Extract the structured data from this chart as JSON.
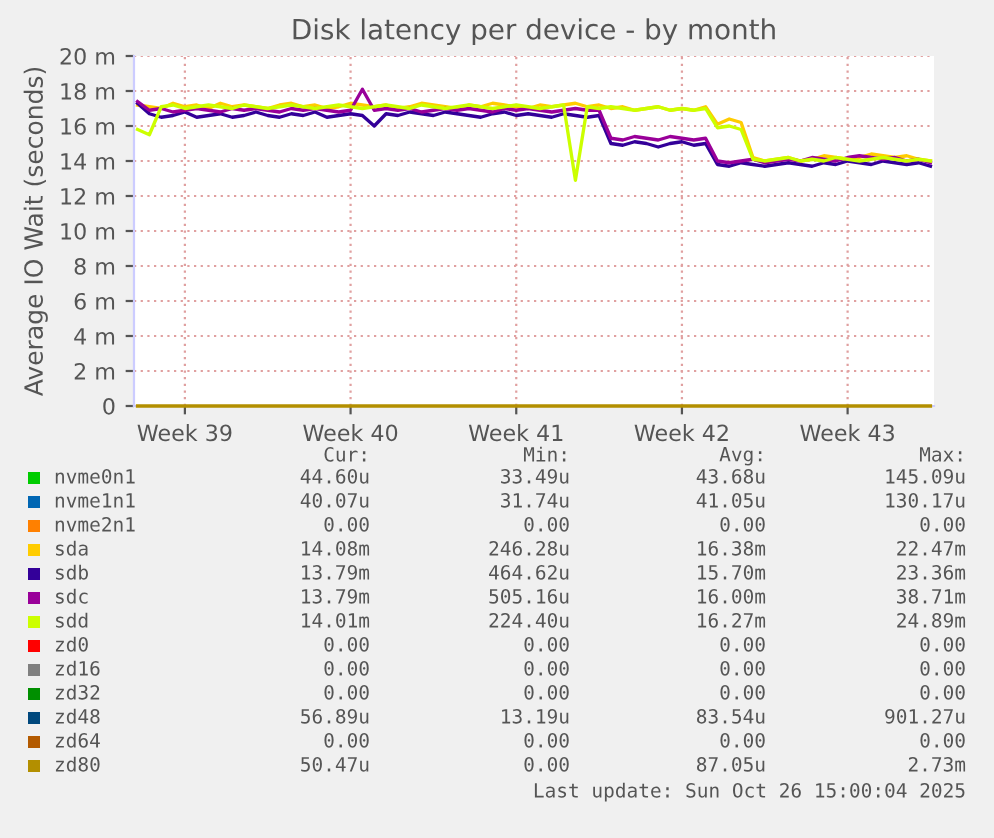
{
  "chart_data": {
    "type": "line",
    "title": "Disk latency per device - by month",
    "ylabel": "Average IO Wait (seconds)",
    "categories": [
      null,
      null,
      null,
      null,
      "Week 39",
      null,
      null,
      null,
      null,
      null,
      null,
      null,
      null,
      null,
      null,
      null,
      null,
      null,
      "Week 40",
      null,
      null,
      null,
      null,
      null,
      null,
      null,
      null,
      null,
      null,
      null,
      null,
      null,
      "Week 41",
      null,
      null,
      null,
      null,
      null,
      null,
      null,
      null,
      null,
      null,
      null,
      null,
      null,
      "Week 42",
      null,
      null,
      null,
      null,
      null,
      null,
      null,
      null,
      null,
      null,
      null,
      null,
      null,
      "Week 43",
      null,
      null,
      null,
      null,
      null,
      null,
      null
    ],
    "ylim": [
      0,
      20
    ],
    "yticks": [
      0,
      {
        "value": 2,
        "label": "2 m"
      },
      {
        "value": 4,
        "label": "4 m"
      },
      {
        "value": 6,
        "label": "6 m"
      },
      {
        "value": 8,
        "label": "8 m"
      },
      {
        "value": 10,
        "label": "10 m"
      },
      {
        "value": 12,
        "label": "12 m"
      },
      {
        "value": 14,
        "label": "14 m"
      },
      {
        "value": 16,
        "label": "16 m"
      },
      {
        "value": 18,
        "label": "18 m"
      },
      {
        "value": 20,
        "label": "20 m"
      }
    ],
    "grid": true,
    "legend": "bottom",
    "series": [
      {
        "name": "nvme0n1",
        "color": "#00cc00",
        "values": [
          null,
          null,
          null,
          null,
          null,
          null,
          null,
          null,
          null,
          null,
          null,
          null,
          null,
          null,
          null,
          null,
          null,
          null,
          null,
          null,
          null,
          null,
          null,
          null,
          null,
          null,
          null,
          null,
          null,
          null,
          null,
          null,
          null,
          null,
          null,
          null,
          null,
          null,
          null,
          null,
          null,
          null,
          null,
          null,
          null,
          null,
          null,
          null,
          null,
          null,
          null,
          null,
          null,
          null,
          null,
          null,
          null,
          null,
          null,
          null,
          null,
          null,
          null,
          null,
          null,
          null,
          null,
          null
        ]
      },
      {
        "name": "nvme1n1",
        "color": "#0066b3",
        "values": [
          null,
          null,
          null,
          null,
          null,
          null,
          null,
          null,
          null,
          null,
          null,
          null,
          null,
          null,
          null,
          null,
          null,
          null,
          null,
          null,
          null,
          null,
          null,
          null,
          null,
          null,
          null,
          null,
          null,
          null,
          null,
          null,
          null,
          null,
          null,
          null,
          null,
          null,
          null,
          null,
          null,
          null,
          null,
          null,
          null,
          null,
          null,
          null,
          null,
          null,
          null,
          null,
          null,
          null,
          null,
          null,
          null,
          null,
          null,
          null,
          null,
          null,
          null,
          null,
          null,
          null,
          null,
          null
        ]
      },
      {
        "name": "nvme2n1",
        "color": "#ff8000",
        "values": [
          null,
          null,
          null,
          null,
          null,
          null,
          null,
          null,
          null,
          null,
          null,
          null,
          null,
          null,
          null,
          null,
          null,
          null,
          null,
          null,
          null,
          null,
          null,
          null,
          null,
          null,
          null,
          null,
          null,
          null,
          null,
          null,
          null,
          null,
          null,
          null,
          null,
          null,
          null,
          null,
          null,
          null,
          null,
          null,
          null,
          null,
          null,
          null,
          null,
          null,
          null,
          null,
          null,
          null,
          null,
          null,
          null,
          null,
          null,
          null,
          null,
          null,
          null,
          null,
          null,
          null,
          null,
          null
        ]
      },
      {
        "name": "sda",
        "color": "#ffcc00",
        "values": [
          17.2,
          17.1,
          17.0,
          17.3,
          17.1,
          17.2,
          17.0,
          17.3,
          17.1,
          17.2,
          17.1,
          17.0,
          17.2,
          17.3,
          17.1,
          17.2,
          17.0,
          17.1,
          17.3,
          17.2,
          17.1,
          17.2,
          17.0,
          17.1,
          17.3,
          17.2,
          17.1,
          17.0,
          17.2,
          17.1,
          17.3,
          17.2,
          17.1,
          17.0,
          17.2,
          17.1,
          17.2,
          17.3,
          17.1,
          17.2,
          17.0,
          17.1,
          16.9,
          17.0,
          17.1,
          16.9,
          17.0,
          16.9,
          17.1,
          16.1,
          16.4,
          16.2,
          14.2,
          14.0,
          14.1,
          14.2,
          14.0,
          14.1,
          14.3,
          14.2,
          14.1,
          14.2,
          14.4,
          14.3,
          14.2,
          14.3,
          14.1,
          14.0
        ]
      },
      {
        "name": "sdb",
        "color": "#330099",
        "values": [
          17.3,
          16.7,
          16.5,
          16.6,
          16.8,
          16.5,
          16.6,
          16.7,
          16.5,
          16.6,
          16.8,
          16.6,
          16.5,
          16.7,
          16.6,
          16.8,
          16.5,
          16.6,
          16.7,
          16.6,
          16.0,
          16.7,
          16.6,
          16.8,
          16.7,
          16.6,
          16.8,
          16.7,
          16.6,
          16.5,
          16.7,
          16.8,
          16.6,
          16.7,
          16.6,
          16.5,
          16.7,
          16.6,
          16.5,
          16.6,
          15.0,
          14.9,
          15.1,
          15.0,
          14.8,
          15.0,
          15.1,
          14.9,
          15.0,
          13.8,
          13.7,
          13.9,
          13.8,
          13.7,
          13.8,
          13.9,
          13.8,
          13.7,
          13.9,
          13.8,
          14.0,
          13.9,
          13.8,
          14.0,
          13.9,
          13.8,
          13.9,
          13.7
        ]
      },
      {
        "name": "sdc",
        "color": "#990099",
        "values": [
          17.4,
          16.9,
          17.0,
          16.8,
          16.9,
          17.0,
          16.9,
          16.8,
          17.0,
          16.9,
          17.0,
          16.9,
          16.8,
          17.0,
          16.9,
          17.0,
          16.9,
          16.8,
          16.9,
          18.1,
          16.9,
          17.0,
          16.9,
          17.0,
          16.8,
          16.9,
          17.0,
          16.9,
          17.0,
          16.9,
          16.8,
          17.0,
          16.9,
          17.0,
          16.9,
          16.8,
          16.9,
          17.0,
          16.9,
          16.9,
          15.3,
          15.2,
          15.4,
          15.3,
          15.2,
          15.4,
          15.3,
          15.2,
          15.3,
          14.0,
          13.9,
          14.0,
          14.1,
          13.9,
          14.0,
          14.1,
          14.0,
          14.2,
          14.1,
          14.0,
          14.2,
          14.3,
          14.2,
          14.1,
          14.2,
          14.0,
          14.1,
          13.9
        ]
      },
      {
        "name": "sdd",
        "color": "#ccff00",
        "values": [
          15.8,
          15.5,
          17.1,
          17.2,
          17.0,
          17.1,
          17.2,
          17.1,
          17.0,
          17.2,
          17.1,
          17.0,
          17.1,
          17.2,
          17.1,
          17.0,
          17.1,
          17.2,
          17.1,
          17.0,
          17.1,
          17.2,
          17.1,
          17.0,
          17.2,
          17.1,
          17.0,
          17.1,
          17.2,
          17.1,
          17.0,
          17.1,
          17.2,
          17.1,
          17.0,
          17.1,
          17.2,
          12.9,
          17.1,
          17.0,
          17.1,
          17.0,
          16.9,
          17.0,
          17.1,
          16.9,
          17.0,
          16.9,
          17.0,
          15.9,
          16.0,
          15.8,
          14.1,
          14.0,
          14.1,
          14.2,
          14.0,
          14.1,
          14.0,
          14.2,
          14.1,
          14.0,
          14.1,
          14.2,
          14.1,
          14.0,
          14.1,
          14.0
        ]
      },
      {
        "name": "zd0",
        "color": "#ff0000",
        "values": [
          null,
          null,
          null,
          null,
          null,
          null,
          null,
          null,
          null,
          null,
          null,
          null,
          null,
          null,
          null,
          null,
          null,
          null,
          null,
          null,
          null,
          null,
          null,
          null,
          null,
          null,
          null,
          null,
          null,
          null,
          null,
          null,
          null,
          null,
          null,
          null,
          null,
          null,
          null,
          null,
          null,
          null,
          null,
          null,
          null,
          null,
          null,
          null,
          null,
          null,
          null,
          null,
          null,
          null,
          null,
          null,
          null,
          null,
          null,
          null,
          null,
          null,
          null,
          null,
          null,
          null,
          null,
          null
        ]
      },
      {
        "name": "zd16",
        "color": "#808080",
        "values": [
          null,
          null,
          null,
          null,
          null,
          null,
          null,
          null,
          null,
          null,
          null,
          null,
          null,
          null,
          null,
          null,
          null,
          null,
          null,
          null,
          null,
          null,
          null,
          null,
          null,
          null,
          null,
          null,
          null,
          null,
          null,
          null,
          null,
          null,
          null,
          null,
          null,
          null,
          null,
          null,
          null,
          null,
          null,
          null,
          null,
          null,
          null,
          null,
          null,
          null,
          null,
          null,
          null,
          null,
          null,
          null,
          null,
          null,
          null,
          null,
          null,
          null,
          null,
          null,
          null,
          null,
          null,
          null
        ]
      },
      {
        "name": "zd32",
        "color": "#008f00",
        "values": [
          null,
          null,
          null,
          null,
          null,
          null,
          null,
          null,
          null,
          null,
          null,
          null,
          null,
          null,
          null,
          null,
          null,
          null,
          null,
          null,
          null,
          null,
          null,
          null,
          null,
          null,
          null,
          null,
          null,
          null,
          null,
          null,
          null,
          null,
          null,
          null,
          null,
          null,
          null,
          null,
          null,
          null,
          null,
          null,
          null,
          null,
          null,
          null,
          null,
          null,
          null,
          null,
          null,
          null,
          null,
          null,
          null,
          null,
          null,
          null,
          null,
          null,
          null,
          null,
          null,
          null,
          null,
          null
        ]
      },
      {
        "name": "zd48",
        "color": "#00487d",
        "values": [
          null,
          null,
          null,
          null,
          null,
          null,
          null,
          null,
          null,
          null,
          null,
          null,
          null,
          null,
          null,
          null,
          null,
          null,
          null,
          null,
          null,
          null,
          null,
          null,
          null,
          null,
          null,
          null,
          null,
          null,
          null,
          null,
          null,
          null,
          null,
          null,
          null,
          null,
          null,
          null,
          null,
          null,
          null,
          null,
          null,
          null,
          null,
          null,
          null,
          null,
          null,
          null,
          null,
          null,
          null,
          null,
          null,
          null,
          null,
          null,
          null,
          null,
          null,
          null,
          null,
          null,
          null,
          null
        ]
      },
      {
        "name": "zd64",
        "color": "#b35a00",
        "values": [
          null,
          null,
          null,
          null,
          null,
          null,
          null,
          null,
          null,
          null,
          null,
          null,
          null,
          null,
          null,
          null,
          null,
          null,
          null,
          null,
          null,
          null,
          null,
          null,
          null,
          null,
          null,
          null,
          null,
          null,
          null,
          null,
          null,
          null,
          null,
          null,
          null,
          null,
          null,
          null,
          null,
          null,
          null,
          null,
          null,
          null,
          null,
          null,
          null,
          null,
          null,
          null,
          null,
          null,
          null,
          null,
          null,
          null,
          null,
          null,
          null,
          null,
          null,
          null,
          null,
          null,
          null,
          null
        ]
      },
      {
        "name": "zd80",
        "color": "#b38f00",
        "values": [
          0,
          0,
          0,
          0,
          0,
          0,
          0,
          0,
          0,
          0,
          0,
          0,
          0,
          0,
          0,
          0,
          0,
          0,
          0,
          0,
          0,
          0,
          0,
          0,
          0,
          0,
          0,
          0,
          0,
          0,
          0,
          0,
          0,
          0,
          0,
          0,
          0,
          0,
          0,
          0,
          0,
          0,
          0,
          0,
          0,
          0,
          0,
          0,
          0,
          0,
          0,
          0,
          0,
          0,
          0,
          0,
          0,
          0,
          0,
          0,
          0,
          0,
          0,
          0,
          0,
          0,
          0,
          0
        ]
      }
    ],
    "annotations": [
      "Cur:",
      "Min:",
      "Avg:",
      "Max:",
      "44.60u",
      "33.49u",
      "43.68u",
      "145.09u",
      "40.07u",
      "31.74u",
      "41.05u",
      "130.17u",
      "0.00",
      "0.00",
      "0.00",
      "0.00",
      "14.08m",
      "246.28u",
      "16.38m",
      "22.47m",
      "13.79m",
      "464.62u",
      "15.70m",
      "23.36m",
      "13.79m",
      "505.16u",
      "16.00m",
      "38.71m",
      "14.01m",
      "224.40u",
      "16.27m",
      "24.89m",
      "0.00",
      "0.00",
      "0.00",
      "0.00",
      "0.00",
      "0.00",
      "0.00",
      "0.00",
      "0.00",
      "0.00",
      "0.00",
      "0.00",
      "56.89u",
      "13.19u",
      "83.54u",
      "901.27u",
      "0.00",
      "0.00",
      "0.00",
      "0.00",
      "50.47u",
      "0.00",
      "87.05u",
      "2.73m",
      "Last update: Sun Oct 26 15:00:04 2025"
    ]
  }
}
